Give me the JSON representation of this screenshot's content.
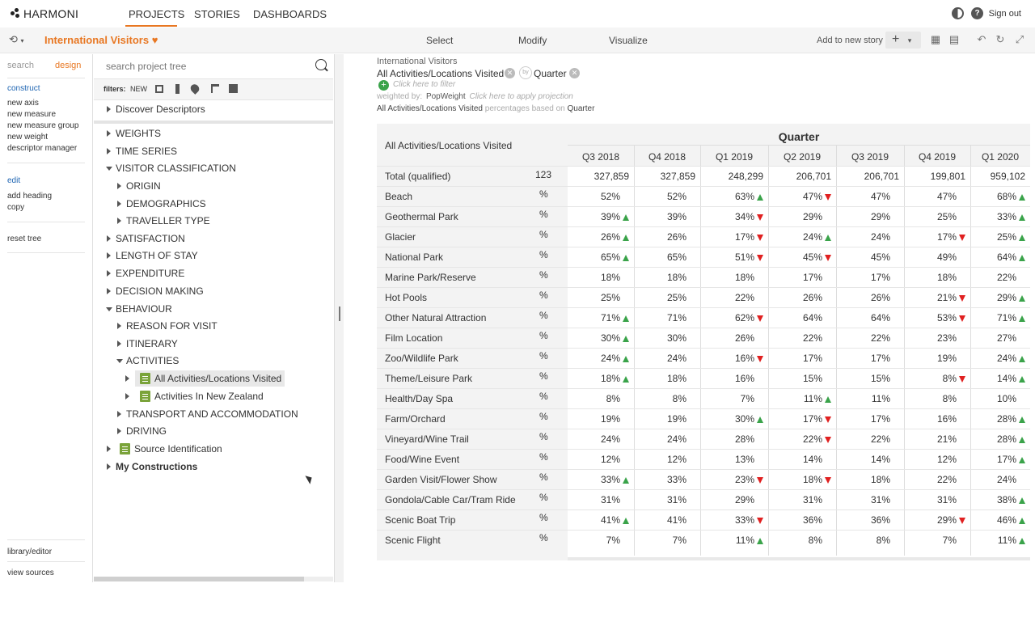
{
  "app": {
    "logo": "HARMONI"
  },
  "nav": {
    "tabs": [
      {
        "label": "PROJECTS"
      },
      {
        "label": "STORIES"
      },
      {
        "label": "DASHBOARDS"
      }
    ],
    "signout": "Sign out"
  },
  "toolbar": {
    "project_title": "International Visitors",
    "modes": [
      "Select",
      "Modify",
      "Visualize"
    ],
    "add_story": "Add to new story",
    "plus": "+"
  },
  "leftbar": {
    "tabs": [
      "search",
      "design"
    ],
    "construct": "construct",
    "construct_items": [
      "new axis",
      "new measure",
      "new measure group",
      "new weight",
      "descriptor manager"
    ],
    "edit": "edit",
    "edit_items": [
      "add heading",
      "copy"
    ],
    "reset": "reset tree",
    "library": "library/editor",
    "view_sources": "view sources"
  },
  "tree": {
    "search_placeholder": "search project tree",
    "filters_label": "filters:",
    "filters_new": "NEW",
    "items": [
      {
        "label": "Discover Descriptors"
      },
      {
        "label": "WEIGHTS"
      },
      {
        "label": "TIME SERIES"
      },
      {
        "label": "VISITOR CLASSIFICATION"
      },
      {
        "label": "ORIGIN"
      },
      {
        "label": "DEMOGRAPHICS"
      },
      {
        "label": "TRAVELLER TYPE"
      },
      {
        "label": "SATISFACTION"
      },
      {
        "label": "LENGTH OF STAY"
      },
      {
        "label": "EXPENDITURE"
      },
      {
        "label": "DECISION MAKING"
      },
      {
        "label": "BEHAVIOUR"
      },
      {
        "label": "REASON FOR VISIT"
      },
      {
        "label": "ITINERARY"
      },
      {
        "label": "ACTIVITIES"
      },
      {
        "label": "All Activities/Locations Visited"
      },
      {
        "label": "Activities In New Zealand"
      },
      {
        "label": "TRANSPORT AND ACCOMMODATION"
      },
      {
        "label": "DRIVING"
      },
      {
        "label": "Source Identification"
      },
      {
        "label": "My Constructions"
      }
    ]
  },
  "header": {
    "project": "International Visitors",
    "row_var": "All Activities/Locations Visited",
    "by": "by",
    "col_var": "Quarter",
    "filter_hint": "Click here to filter",
    "weighted_prefix": "weighted by:",
    "weight_name": "PopWeight",
    "projection_hint": "Click here to apply projection",
    "pct_base_var": "All Activities/Locations Visited",
    "pct_base_text": "percentages based on",
    "pct_base_col": "Quarter"
  },
  "table": {
    "row_header": "All Activities/Locations Visited",
    "col_group": "Quarter",
    "columns": [
      "Q3 2018",
      "Q4 2018",
      "Q1 2019",
      "Q2 2019",
      "Q3 2019",
      "Q4 2019",
      "Q1 2020"
    ],
    "total_label": "Total (qualified)",
    "total_stat": "123",
    "total_values": [
      "327,859",
      "327,859",
      "248,299",
      "206,701",
      "206,701",
      "199,801",
      "959,102"
    ],
    "pct_symbol": "%",
    "rows": [
      {
        "label": "Beach",
        "cells": [
          [
            "52%",
            ""
          ],
          [
            "52%",
            ""
          ],
          [
            "63%",
            "up"
          ],
          [
            "47%",
            "down"
          ],
          [
            "47%",
            ""
          ],
          [
            "47%",
            ""
          ],
          [
            "68%",
            "up"
          ]
        ]
      },
      {
        "label": "Geothermal Park",
        "cells": [
          [
            "39%",
            "up"
          ],
          [
            "39%",
            ""
          ],
          [
            "34%",
            "down"
          ],
          [
            "29%",
            ""
          ],
          [
            "29%",
            ""
          ],
          [
            "25%",
            ""
          ],
          [
            "33%",
            "up"
          ]
        ]
      },
      {
        "label": "Glacier",
        "cells": [
          [
            "26%",
            "up"
          ],
          [
            "26%",
            ""
          ],
          [
            "17%",
            "down"
          ],
          [
            "24%",
            "up"
          ],
          [
            "24%",
            ""
          ],
          [
            "17%",
            "down"
          ],
          [
            "25%",
            "up"
          ]
        ]
      },
      {
        "label": "National Park",
        "cells": [
          [
            "65%",
            "up"
          ],
          [
            "65%",
            ""
          ],
          [
            "51%",
            "down"
          ],
          [
            "45%",
            "down"
          ],
          [
            "45%",
            ""
          ],
          [
            "49%",
            ""
          ],
          [
            "64%",
            "up"
          ]
        ]
      },
      {
        "label": "Marine Park/Reserve",
        "cells": [
          [
            "18%",
            ""
          ],
          [
            "18%",
            ""
          ],
          [
            "18%",
            ""
          ],
          [
            "17%",
            ""
          ],
          [
            "17%",
            ""
          ],
          [
            "18%",
            ""
          ],
          [
            "22%",
            ""
          ]
        ]
      },
      {
        "label": "Hot Pools",
        "cells": [
          [
            "25%",
            ""
          ],
          [
            "25%",
            ""
          ],
          [
            "22%",
            ""
          ],
          [
            "26%",
            ""
          ],
          [
            "26%",
            ""
          ],
          [
            "21%",
            "down"
          ],
          [
            "29%",
            "up"
          ]
        ]
      },
      {
        "label": "Other Natural Attraction",
        "cells": [
          [
            "71%",
            "up"
          ],
          [
            "71%",
            ""
          ],
          [
            "62%",
            "down"
          ],
          [
            "64%",
            ""
          ],
          [
            "64%",
            ""
          ],
          [
            "53%",
            "down"
          ],
          [
            "71%",
            "up"
          ]
        ]
      },
      {
        "label": "Film Location",
        "cells": [
          [
            "30%",
            "up"
          ],
          [
            "30%",
            ""
          ],
          [
            "26%",
            ""
          ],
          [
            "22%",
            ""
          ],
          [
            "22%",
            ""
          ],
          [
            "23%",
            ""
          ],
          [
            "27%",
            ""
          ]
        ]
      },
      {
        "label": "Zoo/Wildlife Park",
        "cells": [
          [
            "24%",
            "up"
          ],
          [
            "24%",
            ""
          ],
          [
            "16%",
            "down"
          ],
          [
            "17%",
            ""
          ],
          [
            "17%",
            ""
          ],
          [
            "19%",
            ""
          ],
          [
            "24%",
            "up"
          ]
        ]
      },
      {
        "label": "Theme/Leisure Park",
        "cells": [
          [
            "18%",
            "up"
          ],
          [
            "18%",
            ""
          ],
          [
            "16%",
            ""
          ],
          [
            "15%",
            ""
          ],
          [
            "15%",
            ""
          ],
          [
            "8%",
            "down"
          ],
          [
            "14%",
            "up"
          ]
        ]
      },
      {
        "label": "Health/Day Spa",
        "cells": [
          [
            "8%",
            ""
          ],
          [
            "8%",
            ""
          ],
          [
            "7%",
            ""
          ],
          [
            "11%",
            "up"
          ],
          [
            "11%",
            ""
          ],
          [
            "8%",
            ""
          ],
          [
            "10%",
            ""
          ]
        ]
      },
      {
        "label": "Farm/Orchard",
        "cells": [
          [
            "19%",
            ""
          ],
          [
            "19%",
            ""
          ],
          [
            "30%",
            "up"
          ],
          [
            "17%",
            "down"
          ],
          [
            "17%",
            ""
          ],
          [
            "16%",
            ""
          ],
          [
            "28%",
            "up"
          ]
        ]
      },
      {
        "label": "Vineyard/Wine Trail",
        "cells": [
          [
            "24%",
            ""
          ],
          [
            "24%",
            ""
          ],
          [
            "28%",
            ""
          ],
          [
            "22%",
            "down"
          ],
          [
            "22%",
            ""
          ],
          [
            "21%",
            ""
          ],
          [
            "28%",
            "up"
          ]
        ]
      },
      {
        "label": "Food/Wine Event",
        "cells": [
          [
            "12%",
            ""
          ],
          [
            "12%",
            ""
          ],
          [
            "13%",
            ""
          ],
          [
            "14%",
            ""
          ],
          [
            "14%",
            ""
          ],
          [
            "12%",
            ""
          ],
          [
            "17%",
            "up"
          ]
        ]
      },
      {
        "label": "Garden Visit/Flower Show",
        "cells": [
          [
            "33%",
            "up"
          ],
          [
            "33%",
            ""
          ],
          [
            "23%",
            "down"
          ],
          [
            "18%",
            "down"
          ],
          [
            "18%",
            ""
          ],
          [
            "22%",
            ""
          ],
          [
            "24%",
            ""
          ]
        ]
      },
      {
        "label": "Gondola/Cable Car/Tram Ride",
        "cells": [
          [
            "31%",
            ""
          ],
          [
            "31%",
            ""
          ],
          [
            "29%",
            ""
          ],
          [
            "31%",
            ""
          ],
          [
            "31%",
            ""
          ],
          [
            "31%",
            ""
          ],
          [
            "38%",
            "up"
          ]
        ]
      },
      {
        "label": "Scenic Boat Trip",
        "cells": [
          [
            "41%",
            "up"
          ],
          [
            "41%",
            ""
          ],
          [
            "33%",
            "down"
          ],
          [
            "36%",
            ""
          ],
          [
            "36%",
            ""
          ],
          [
            "29%",
            "down"
          ],
          [
            "46%",
            "up"
          ]
        ]
      },
      {
        "label": "Scenic Flight",
        "cells": [
          [
            "7%",
            ""
          ],
          [
            "7%",
            ""
          ],
          [
            "11%",
            "up"
          ],
          [
            "8%",
            ""
          ],
          [
            "8%",
            ""
          ],
          [
            "7%",
            ""
          ],
          [
            "11%",
            "up"
          ]
        ]
      }
    ]
  },
  "colors": {
    "accent": "#e87722",
    "up": "#3aa34a",
    "down": "#e02020",
    "link": "#2066b3"
  }
}
